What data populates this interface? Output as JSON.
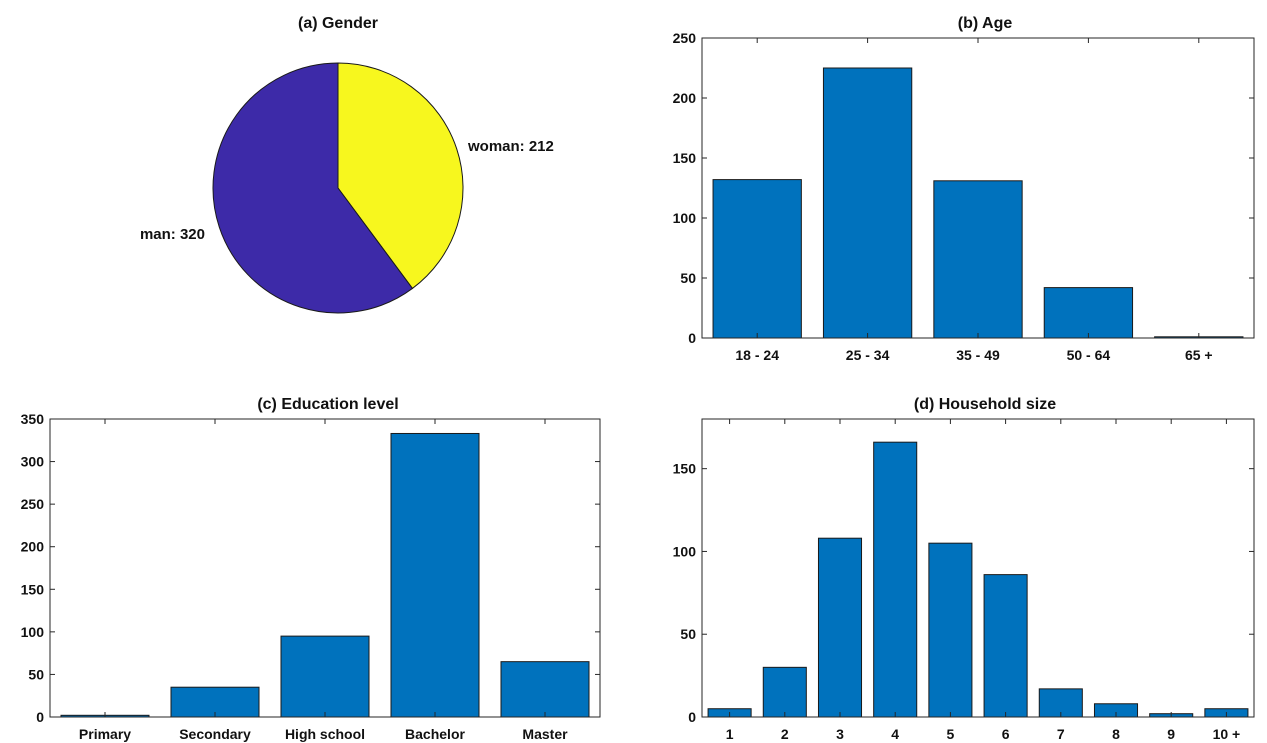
{
  "colors": {
    "bar": "#0072BD",
    "man": "#3D2AA8",
    "woman": "#F7F71E"
  },
  "chart_data": [
    {
      "type": "pie",
      "title": "(a) Gender",
      "slices": [
        {
          "label": "woman: 212",
          "name": "woman",
          "value": 212,
          "color": "#F7F71E"
        },
        {
          "label": "man: 320",
          "name": "man",
          "value": 320,
          "color": "#3D2AA8"
        }
      ]
    },
    {
      "type": "bar",
      "title": "(b) Age",
      "categories": [
        "18 - 24",
        "25 - 34",
        "35 - 49",
        "50 - 64",
        "65 +"
      ],
      "values": [
        132,
        225,
        131,
        42,
        1
      ],
      "ylim": [
        0,
        250
      ],
      "yticks": [
        0,
        50,
        100,
        150,
        200,
        250
      ],
      "xlabel": "",
      "ylabel": ""
    },
    {
      "type": "bar",
      "title": "(c) Education level",
      "categories": [
        "Primary",
        "Secondary",
        "High school",
        "Bachelor",
        "Master"
      ],
      "values": [
        2,
        35,
        95,
        333,
        65
      ],
      "ylim": [
        0,
        350
      ],
      "yticks": [
        0,
        50,
        100,
        150,
        200,
        250,
        300,
        350
      ],
      "xlabel": "",
      "ylabel": ""
    },
    {
      "type": "bar",
      "title": "(d) Household size",
      "categories": [
        "1",
        "2",
        "3",
        "4",
        "5",
        "6",
        "7",
        "8",
        "9",
        "10 +"
      ],
      "values": [
        5,
        30,
        108,
        166,
        105,
        86,
        17,
        8,
        2,
        5
      ],
      "ylim": [
        0,
        180
      ],
      "yticks": [
        0,
        50,
        100,
        150
      ],
      "xlabel": "",
      "ylabel": ""
    }
  ]
}
